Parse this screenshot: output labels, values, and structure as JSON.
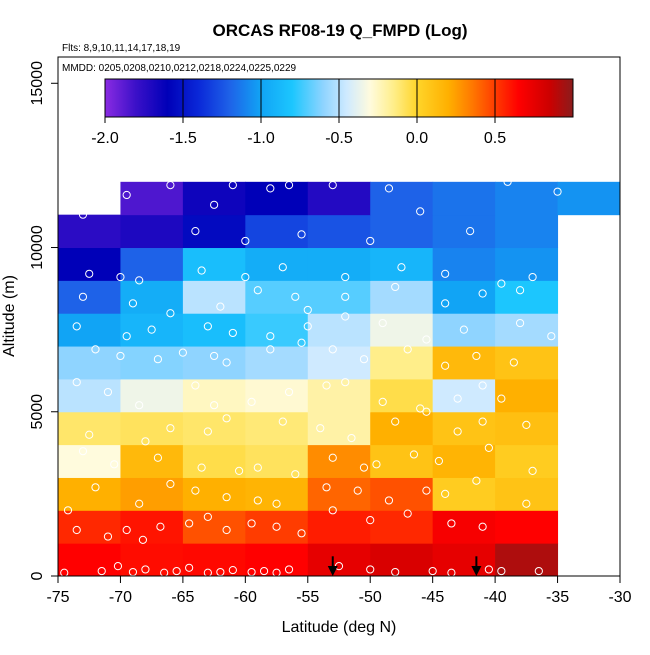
{
  "chart_data": {
    "type": "heatmap",
    "title": "ORCAS RF08-19 Q_FMPD (Log)",
    "flights_note": "Flts: 8,9,10,11,14,17,18,19",
    "dates_note": "MMDD: 0205,0208,0210,0212,0218,0224,0225,0229",
    "xlabel": "Latitude (deg N)",
    "ylabel": "Altitude (m)",
    "xlim": [
      -75,
      -30
    ],
    "ylim": [
      0,
      15800
    ],
    "x_ticks": [
      -75,
      -70,
      -65,
      -60,
      -55,
      -50,
      -45,
      -40,
      -35,
      -30
    ],
    "x_tick_labels": [
      "-75",
      "-70",
      "-65",
      "-60",
      "-55",
      "-50",
      "-45",
      "-40",
      "-35",
      "-30"
    ],
    "y_ticks": [
      0,
      5000,
      10000,
      15000
    ],
    "y_tick_labels": [
      "0",
      "5000",
      "10000",
      "15000"
    ],
    "colorbar": {
      "min": -2.0,
      "max": 1.0,
      "ticks": [
        -2.0,
        -1.5,
        -1.0,
        -0.5,
        0.0,
        0.5
      ],
      "tick_labels": [
        "-2.0",
        "-1.5",
        "-1.0",
        "-0.5",
        "0.0",
        "0.5"
      ],
      "stops": [
        {
          "v": -2.0,
          "c": "#8a2be2"
        },
        {
          "v": -1.8,
          "c": "#3a10c8"
        },
        {
          "v": -1.6,
          "c": "#0000b8"
        },
        {
          "v": -1.4,
          "c": "#0a28d8"
        },
        {
          "v": -1.2,
          "c": "#1e62e8"
        },
        {
          "v": -1.0,
          "c": "#11a4f5"
        },
        {
          "v": -0.8,
          "c": "#1cc6fe"
        },
        {
          "v": -0.6,
          "c": "#8fd4ff"
        },
        {
          "v": -0.45,
          "c": "#cfeaff"
        },
        {
          "v": -0.3,
          "c": "#fffbdd"
        },
        {
          "v": -0.15,
          "c": "#ffee8a"
        },
        {
          "v": 0.0,
          "c": "#ffd52a"
        },
        {
          "v": 0.2,
          "c": "#ffb000"
        },
        {
          "v": 0.35,
          "c": "#ff7a00"
        },
        {
          "v": 0.5,
          "c": "#ff3c00"
        },
        {
          "v": 0.65,
          "c": "#ff0000"
        },
        {
          "v": 0.85,
          "c": "#cc0000"
        },
        {
          "v": 1.0,
          "c": "#8b1c1c"
        }
      ]
    },
    "x_bin_edges": [
      -75,
      -70,
      -65,
      -60,
      -55,
      -50,
      -45,
      -40,
      -35,
      -30
    ],
    "y_bin_edges": [
      0,
      1000,
      2000,
      3000,
      4000,
      5000,
      6000,
      7000,
      8000,
      9000,
      10000,
      11000,
      12000
    ],
    "cells": [
      [
        0.65,
        0.62,
        0.63,
        0.65,
        0.75,
        0.8,
        0.75,
        0.92,
        null
      ],
      [
        0.55,
        0.6,
        0.45,
        0.5,
        0.58,
        0.55,
        0.68,
        0.65,
        null
      ],
      [
        0.2,
        0.25,
        0.2,
        0.18,
        0.4,
        0.45,
        0.05,
        0.1,
        null
      ],
      [
        -0.3,
        0.15,
        -0.05,
        -0.08,
        0.3,
        0.1,
        0.18,
        0.05,
        null
      ],
      [
        -0.1,
        -0.08,
        -0.1,
        -0.12,
        -0.2,
        0.2,
        0.1,
        0.12,
        null
      ],
      [
        -0.5,
        -0.35,
        -0.25,
        -0.28,
        -0.2,
        -0.05,
        -0.45,
        0.2,
        null
      ],
      [
        -0.6,
        -0.62,
        -0.6,
        -0.55,
        -0.45,
        -0.15,
        0.15,
        0.1,
        null
      ],
      [
        -1.0,
        -0.9,
        -0.85,
        -0.75,
        -0.5,
        -0.35,
        -0.6,
        -0.55,
        null
      ],
      [
        -1.2,
        -0.95,
        -0.5,
        -0.7,
        -0.7,
        -0.55,
        -1.0,
        -0.8,
        null
      ],
      [
        -1.6,
        -1.2,
        -0.85,
        -0.95,
        -0.95,
        -0.9,
        -1.1,
        -1.05,
        null
      ],
      [
        -1.75,
        -1.7,
        -1.55,
        -1.3,
        -1.25,
        -1.2,
        -1.15,
        -1.1,
        null
      ],
      [
        null,
        -1.85,
        -1.65,
        -1.6,
        -1.72,
        -1.2,
        -1.15,
        -1.1,
        -1.05
      ]
    ],
    "observations": [
      [
        -74.5,
        100
      ],
      [
        -71.5,
        150
      ],
      [
        -70.2,
        300
      ],
      [
        -69.0,
        120
      ],
      [
        -68.0,
        200
      ],
      [
        -66.5,
        100
      ],
      [
        -65.5,
        150
      ],
      [
        -64.5,
        250
      ],
      [
        -63.0,
        100
      ],
      [
        -62.0,
        120
      ],
      [
        -61.0,
        180
      ],
      [
        -59.5,
        120
      ],
      [
        -58.5,
        150
      ],
      [
        -57.5,
        100
      ],
      [
        -56.5,
        200
      ],
      [
        -52.5,
        300
      ],
      [
        -50.0,
        200
      ],
      [
        -48.0,
        120
      ],
      [
        -45.0,
        150
      ],
      [
        -43.5,
        100
      ],
      [
        -40.5,
        200
      ],
      [
        -39.5,
        150
      ],
      [
        -36.5,
        150
      ],
      [
        -74.2,
        2000
      ],
      [
        -73.5,
        1400
      ],
      [
        -71.0,
        1200
      ],
      [
        -69.5,
        1400
      ],
      [
        -68.2,
        1100
      ],
      [
        -66.8,
        1500
      ],
      [
        -64.5,
        1600
      ],
      [
        -63.0,
        1800
      ],
      [
        -61.5,
        1400
      ],
      [
        -59.5,
        1600
      ],
      [
        -57.5,
        1500
      ],
      [
        -55.5,
        1300
      ],
      [
        -53.0,
        2000
      ],
      [
        -50.0,
        1700
      ],
      [
        -47.0,
        1900
      ],
      [
        -43.5,
        1600
      ],
      [
        -41.0,
        1500
      ],
      [
        -72.0,
        2700
      ],
      [
        -68.5,
        2200
      ],
      [
        -66.0,
        2800
      ],
      [
        -64.0,
        2600
      ],
      [
        -61.5,
        2400
      ],
      [
        -59.0,
        2300
      ],
      [
        -57.5,
        2200
      ],
      [
        -53.5,
        2700
      ],
      [
        -51.0,
        2600
      ],
      [
        -48.5,
        2300
      ],
      [
        -45.5,
        2600
      ],
      [
        -44.0,
        2500
      ],
      [
        -41.5,
        2900
      ],
      [
        -37.5,
        2200
      ],
      [
        -73.0,
        3800
      ],
      [
        -70.5,
        3400
      ],
      [
        -67.0,
        3600
      ],
      [
        -63.5,
        3300
      ],
      [
        -60.5,
        3200
      ],
      [
        -59.0,
        3300
      ],
      [
        -56.0,
        3100
      ],
      [
        -53.0,
        3600
      ],
      [
        -50.5,
        3300
      ],
      [
        -49.5,
        3400
      ],
      [
        -46.5,
        3700
      ],
      [
        -44.5,
        3500
      ],
      [
        -40.5,
        3900
      ],
      [
        -37.0,
        3200
      ],
      [
        -72.5,
        4300
      ],
      [
        -68.0,
        4100
      ],
      [
        -66.0,
        4500
      ],
      [
        -63.0,
        4400
      ],
      [
        -61.5,
        4800
      ],
      [
        -57.0,
        4700
      ],
      [
        -54.0,
        4500
      ],
      [
        -51.5,
        4200
      ],
      [
        -48.0,
        4700
      ],
      [
        -45.5,
        5000
      ],
      [
        -43.0,
        4400
      ],
      [
        -41.0,
        4700
      ],
      [
        -37.5,
        4600
      ],
      [
        -73.5,
        5900
      ],
      [
        -71.0,
        5600
      ],
      [
        -68.5,
        5200
      ],
      [
        -64.0,
        5800
      ],
      [
        -62.5,
        5200
      ],
      [
        -59.5,
        5300
      ],
      [
        -56.5,
        5600
      ],
      [
        -53.5,
        5800
      ],
      [
        -52.0,
        5900
      ],
      [
        -49.0,
        5300
      ],
      [
        -46.0,
        5100
      ],
      [
        -43.0,
        5400
      ],
      [
        -41.0,
        5800
      ],
      [
        -39.5,
        5400
      ],
      [
        -72.0,
        6900
      ],
      [
        -70.0,
        6700
      ],
      [
        -67.0,
        6600
      ],
      [
        -65.0,
        6800
      ],
      [
        -62.5,
        6700
      ],
      [
        -61.5,
        6500
      ],
      [
        -58.0,
        6900
      ],
      [
        -55.5,
        7100
      ],
      [
        -53.0,
        6900
      ],
      [
        -50.5,
        6600
      ],
      [
        -47.0,
        6900
      ],
      [
        -44.0,
        6400
      ],
      [
        -41.5,
        6700
      ],
      [
        -38.5,
        6500
      ],
      [
        -73.5,
        7600
      ],
      [
        -69.5,
        7300
      ],
      [
        -67.5,
        7500
      ],
      [
        -63.0,
        7600
      ],
      [
        -61.0,
        7400
      ],
      [
        -58.0,
        7300
      ],
      [
        -55.0,
        7600
      ],
      [
        -52.0,
        7900
      ],
      [
        -49.0,
        7700
      ],
      [
        -45.5,
        7200
      ],
      [
        -42.5,
        7500
      ],
      [
        -38.0,
        7700
      ],
      [
        -35.5,
        7300
      ],
      [
        -73.0,
        8500
      ],
      [
        -69.0,
        8300
      ],
      [
        -66.0,
        8000
      ],
      [
        -62.0,
        8200
      ],
      [
        -59.0,
        8700
      ],
      [
        -56.0,
        8500
      ],
      [
        -55.0,
        8100
      ],
      [
        -52.0,
        8500
      ],
      [
        -48.0,
        8800
      ],
      [
        -44.0,
        8300
      ],
      [
        -41.0,
        8600
      ],
      [
        -38.0,
        8700
      ],
      [
        -72.5,
        9200
      ],
      [
        -70.0,
        9100
      ],
      [
        -68.5,
        9000
      ],
      [
        -63.5,
        9300
      ],
      [
        -60.0,
        9100
      ],
      [
        -57.0,
        9400
      ],
      [
        -52.0,
        9100
      ],
      [
        -47.5,
        9400
      ],
      [
        -44.0,
        9200
      ],
      [
        -39.5,
        8900
      ],
      [
        -37.0,
        9100
      ],
      [
        -73.0,
        11000
      ],
      [
        -64.0,
        10500
      ],
      [
        -60.0,
        10200
      ],
      [
        -55.5,
        10400
      ],
      [
        -50.0,
        10200
      ],
      [
        -46.0,
        11100
      ],
      [
        -42.0,
        10500
      ],
      [
        -69.5,
        11600
      ],
      [
        -66.0,
        11900
      ],
      [
        -62.5,
        11300
      ],
      [
        -61.0,
        11900
      ],
      [
        -58.0,
        11800
      ],
      [
        -56.5,
        11900
      ],
      [
        -53.0,
        11900
      ],
      [
        -48.5,
        11800
      ],
      [
        -39.0,
        12000
      ],
      [
        -35.0,
        11700
      ]
    ],
    "arrows": [
      {
        "x": -53.0,
        "y": 600
      },
      {
        "x": -41.5,
        "y": 600
      }
    ]
  }
}
